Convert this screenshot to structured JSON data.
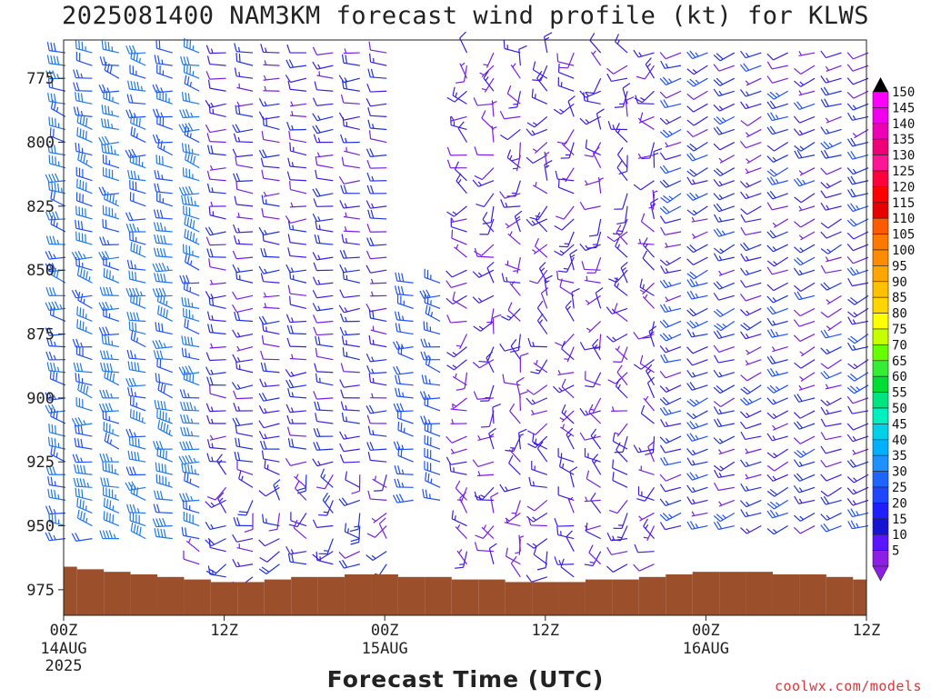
{
  "chart_data": {
    "type": "wind-barb-profile",
    "title": "2025081400 NAM3KM forecast wind profile (kt) for KLWS",
    "xlabel": "Forecast Time (UTC)",
    "ylabel": "",
    "credit": "coolwx.com/models",
    "y_axis": {
      "label_values": [
        775,
        800,
        825,
        850,
        875,
        900,
        925,
        950,
        975
      ],
      "ylim": [
        985,
        760
      ],
      "grid": false
    },
    "x_axis": {
      "xlim_hours": [
        0,
        60
      ],
      "ticks": [
        {
          "hour": 0,
          "label": "00Z",
          "sub1": "14AUG",
          "sub2": "2025"
        },
        {
          "hour": 12,
          "label": "12Z",
          "sub1": "",
          "sub2": ""
        },
        {
          "hour": 24,
          "label": "00Z",
          "sub1": "15AUG",
          "sub2": ""
        },
        {
          "hour": 36,
          "label": "12Z",
          "sub1": "",
          "sub2": ""
        },
        {
          "hour": 48,
          "label": "00Z",
          "sub1": "16AUG",
          "sub2": ""
        },
        {
          "hour": 60,
          "label": "12Z",
          "sub1": "",
          "sub2": ""
        }
      ]
    },
    "forecast_hours": [
      0,
      2,
      4,
      6,
      8,
      10,
      12,
      14,
      16,
      18,
      20,
      22,
      24,
      26,
      28,
      30,
      32,
      34,
      36,
      38,
      40,
      42,
      44,
      46,
      48,
      50,
      52,
      54,
      56,
      58,
      60
    ],
    "levels_hpa": [
      765,
      770,
      775,
      780,
      785,
      790,
      795,
      800,
      805,
      810,
      815,
      820,
      825,
      830,
      835,
      840,
      845,
      850,
      855,
      860,
      865,
      870,
      875,
      880,
      885,
      890,
      895,
      900,
      905,
      910,
      915,
      920,
      925,
      930,
      935,
      940,
      945,
      950,
      955,
      960,
      965,
      970
    ],
    "surface_pressure_hpa": [
      966,
      967,
      968,
      969,
      970,
      971,
      972,
      972,
      971,
      970,
      970,
      969,
      969,
      970,
      970,
      971,
      971,
      972,
      972,
      972,
      971,
      971,
      970,
      969,
      968,
      968,
      968,
      969,
      969,
      970,
      971
    ],
    "wind_field_summary": [
      {
        "hours": [
          0,
          10
        ],
        "levels_hpa": [
          765,
          955
        ],
        "speed_kt": [
          20,
          45
        ],
        "direction": "westerly to west-northwesterly"
      },
      {
        "hours": [
          10,
          24
        ],
        "levels_hpa": [
          765,
          970
        ],
        "speed_kt": [
          5,
          20
        ],
        "direction": "westerly aloft, variable near surface"
      },
      {
        "hours": [
          24,
          28
        ],
        "levels_hpa": [
          855,
          940
        ],
        "speed_kt": [
          20,
          30
        ],
        "direction": "westerly"
      },
      {
        "hours": [
          30,
          44
        ],
        "levels_hpa": [
          765,
          970
        ],
        "speed_kt": [
          5,
          15
        ],
        "direction": "variable"
      },
      {
        "hours": [
          44,
          60
        ],
        "levels_hpa": [
          765,
          950
        ],
        "speed_kt": [
          5,
          25
        ],
        "direction": "west-southwesterly"
      }
    ],
    "colorbar": {
      "labels": [
        "150",
        "145",
        "140",
        "135",
        "130",
        "125",
        "120",
        "115",
        "110",
        "105",
        "100",
        "95",
        "90",
        "85",
        "80",
        "75",
        "70",
        "65",
        "60",
        "55",
        "50",
        "45",
        "40",
        "35",
        "30",
        "25",
        "20",
        "15",
        "10",
        "5"
      ],
      "colors": [
        "#ff00ff",
        "#f000ee",
        "#ee00b4",
        "#f00078",
        "#ff1493",
        "#ff003c",
        "#ff0000",
        "#e60000",
        "#ff5a00",
        "#ff7800",
        "#ff8c00",
        "#ffa500",
        "#ffc000",
        "#ffd500",
        "#ffff00",
        "#c8ff00",
        "#66ff00",
        "#33ee33",
        "#00dd33",
        "#00e580",
        "#00f0c0",
        "#00d0e8",
        "#00b0ff",
        "#1e90ff",
        "#1e64ff",
        "#1e46ff",
        "#1e1eff",
        "#1414d2",
        "#5a14ff",
        "#8c1ee6"
      ]
    }
  }
}
